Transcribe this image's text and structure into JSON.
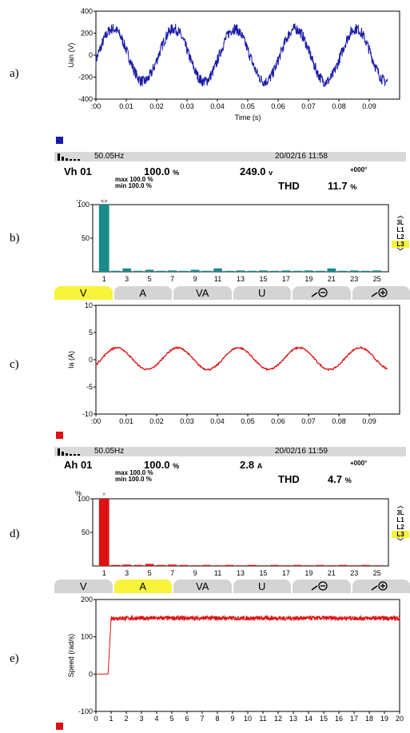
{
  "panel_labels": [
    "a)",
    "b)",
    "c)",
    "d)",
    "e)"
  ],
  "colors": {
    "voltage": "#1a1aa8",
    "teal": "#1a8a8a",
    "red": "#dd1111",
    "tab_active": "#f6f33a",
    "tab": "#d4d4d4",
    "status": "#d9d9d9"
  },
  "chart_data": [
    {
      "type": "line",
      "ylabel": "Uan (V)",
      "xlabel": "Time (s)",
      "ylim": [
        -400,
        400
      ],
      "xlim": [
        0,
        0.1
      ],
      "yticks": [
        "400",
        "200",
        "0",
        "-200",
        "-400"
      ],
      "xticks": [
        ":00",
        "0.01",
        "0.02",
        "0.03",
        "0.04",
        "0.05",
        "0.06",
        "0.07",
        "0.08",
        "0.09"
      ],
      "series": [
        {
          "amplitude": 240,
          "frequency_hz": 50,
          "noise": 50,
          "x_end": 0.096
        }
      ]
    },
    {
      "type": "bar",
      "ylabel": "%",
      "ylim": [
        0,
        100
      ],
      "yticks": [
        "100",
        "50"
      ],
      "xticks": [
        "1",
        "3",
        "5",
        "7",
        "9",
        "11",
        "13",
        "15",
        "17",
        "19",
        "21",
        "23",
        "25"
      ],
      "harmonics": [
        1,
        3,
        5,
        7,
        9,
        11,
        13,
        15,
        17,
        19,
        21,
        23,
        25
      ],
      "values": [
        100,
        5,
        3,
        2,
        3,
        5,
        2,
        2,
        2,
        2,
        5,
        2,
        2
      ],
      "top_marker": "<>"
    },
    {
      "type": "line",
      "ylabel": "Ia (A)",
      "ylim": [
        -10,
        10
      ],
      "xlim": [
        0,
        0.1
      ],
      "yticks": [
        "10",
        "5",
        "0",
        "-5",
        "-10"
      ],
      "xticks": [
        ":00",
        "0.01",
        "0.02",
        "0.03",
        "0.04",
        "0.05",
        "0.06",
        "0.07",
        "0.08",
        "0.09"
      ],
      "series": [
        {
          "amplitude": 2.0,
          "offset": 0.2,
          "frequency_hz": 50,
          "noise": 0.15,
          "x_end": 0.096
        }
      ]
    },
    {
      "type": "bar",
      "ylabel": "%",
      "ylim": [
        0,
        100
      ],
      "yticks": [
        "100",
        "50"
      ],
      "xticks": [
        "1",
        "3",
        "5",
        "7",
        "9",
        "11",
        "13",
        "15",
        "17",
        "19",
        "21",
        "23",
        "25"
      ],
      "harmonics": [
        1,
        3,
        5,
        7,
        9,
        11,
        13,
        15,
        17,
        19,
        21,
        23,
        25
      ],
      "values": [
        100,
        2,
        3,
        2,
        1,
        1,
        1,
        1,
        1,
        1,
        1,
        1,
        1
      ],
      "top_marker": "^"
    },
    {
      "type": "line",
      "ylabel": "Speed (rad/s)",
      "ylim": [
        -100,
        200
      ],
      "xlim": [
        0,
        20
      ],
      "yticks": [
        "200",
        "100",
        "0",
        "-100"
      ],
      "xticks": [
        "0",
        "1",
        "2",
        "3",
        "4",
        "5",
        "6",
        "7",
        "8",
        "9",
        "10",
        "11",
        "12",
        "13",
        "14",
        "15",
        "16",
        "17",
        "18",
        "19",
        "20"
      ],
      "series": [
        {
          "initial": 0,
          "step_time": 0.8,
          "steady": 150,
          "noise": 6
        }
      ]
    }
  ],
  "meas1": {
    "freq": "50.05Hz",
    "datetime": "20/02/16  11:58",
    "code": "Vh 01",
    "pct": "100.0",
    "pct_unit": "%",
    "value": "249.0",
    "unit": "v",
    "phase": "+000°",
    "max_label": "max 100.0 %",
    "min_label": "min 100.0 %",
    "thd_label": "THD",
    "thd_value": "11.7",
    "thd_unit": "%"
  },
  "meas2": {
    "freq": "50.05Hz",
    "datetime": "20/02/16  11:59",
    "code": "Ah 01",
    "pct": "100.0",
    "pct_unit": "%",
    "value": "2.8",
    "unit": "A",
    "phase": "+000°",
    "max_label": "max 100.0 %",
    "min_label": "min 100.0 %",
    "thd_label": "THD",
    "thd_value": "4.7",
    "thd_unit": "%"
  },
  "phase_selector": [
    "3L",
    "L1",
    "L2",
    "L3"
  ],
  "tabs": [
    {
      "label": "V"
    },
    {
      "label": "A"
    },
    {
      "label": "VA"
    },
    {
      "label": "U"
    },
    {
      "label": "",
      "icon": "zoom-out-icon"
    },
    {
      "label": "",
      "icon": "zoom-in-icon"
    }
  ]
}
